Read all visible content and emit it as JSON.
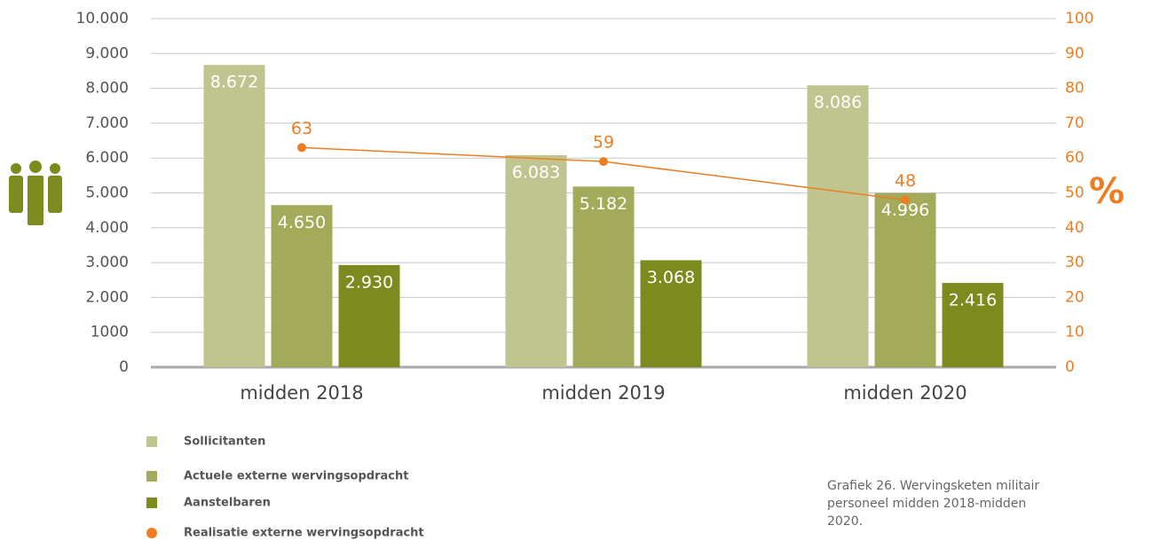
{
  "chart_data": {
    "type": "bar",
    "categories": [
      "midden 2018",
      "midden 2019",
      "midden 2020"
    ],
    "series": [
      {
        "name": "Sollicitanten",
        "color": "#c0c58f",
        "values": [
          8672,
          6083,
          8086
        ],
        "value_labels": [
          "8.672",
          "6.083",
          "8.086"
        ]
      },
      {
        "name": "Actuele externe wervingsopdracht",
        "color": "#a3ab5a",
        "values": [
          4650,
          5182,
          4996
        ],
        "value_labels": [
          "4.650",
          "5.182",
          "4.996"
        ]
      },
      {
        "name": "Aanstelbaren",
        "color": "#7c8a1e",
        "values": [
          2930,
          3068,
          2416
        ],
        "value_labels": [
          "2.930",
          "3.068",
          "2.416"
        ]
      },
      {
        "name": "Realisatie externe wervingsopdracht",
        "color": "#ee7d22",
        "type": "line",
        "axis": "y2",
        "values": [
          63,
          59,
          48
        ]
      }
    ],
    "ylim": [
      0,
      10000
    ],
    "yticks": [
      0,
      {
        "value": 1000,
        "label": "1000"
      },
      {
        "value": 2000,
        "label": "2.000"
      },
      {
        "value": 3000,
        "label": "3.000"
      },
      {
        "value": 4000,
        "label": "4.000"
      },
      {
        "value": 5000,
        "label": "5.000"
      },
      {
        "value": 6000,
        "label": "6.000"
      },
      {
        "value": 7000,
        "label": "7.000"
      },
      {
        "value": 8000,
        "label": "8.000"
      },
      {
        "value": 9000,
        "label": "9.000"
      },
      {
        "value": 10000,
        "label": "10.000"
      }
    ],
    "y2lim": [
      0,
      100
    ],
    "y2ticks": [
      0,
      10,
      20,
      30,
      40,
      50,
      60,
      70,
      80,
      90,
      100
    ],
    "y2_label": "%",
    "grid": true,
    "caption": "Grafiek 26. Wervingsketen militair personeel midden 2018-midden 2020."
  }
}
